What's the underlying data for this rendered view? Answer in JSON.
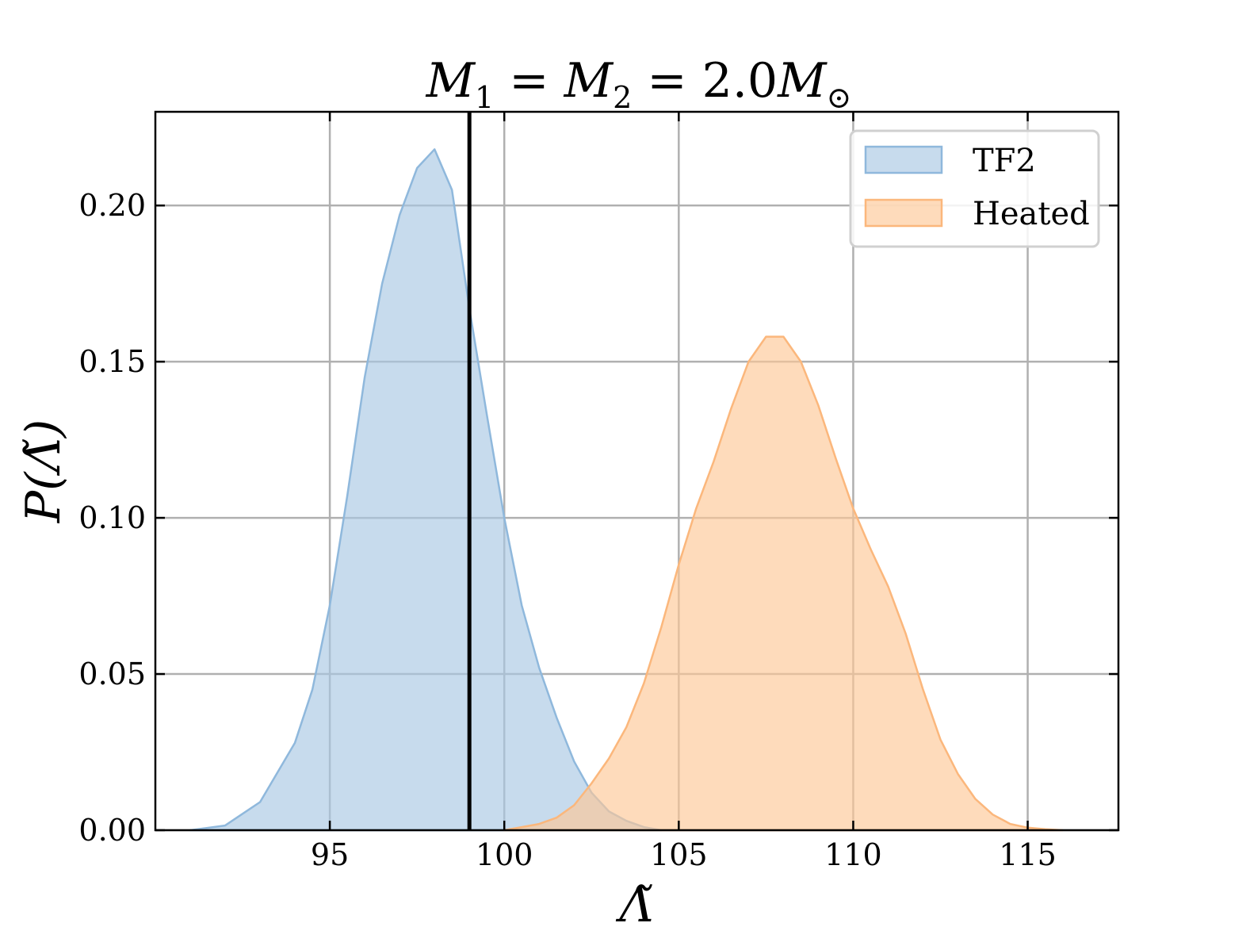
{
  "chart_data": {
    "type": "area",
    "title": {
      "m1": "M",
      "sub1": "1",
      "eq1": " = ",
      "m2": "M",
      "sub2": "2",
      "eq2": " = 2.0",
      "m3": "M",
      "sub3": "⊙"
    },
    "xlabel": "Λ̃",
    "ylabel": "P(Λ̃)",
    "xlim": [
      90.0,
      117.6
    ],
    "ylim": [
      0.0,
      0.23
    ],
    "xticks": [
      95,
      100,
      105,
      110,
      115
    ],
    "xtick_labels": [
      "95",
      "100",
      "105",
      "110",
      "115"
    ],
    "yticks": [
      0.0,
      0.05,
      0.1,
      0.15,
      0.2
    ],
    "ytick_labels": [
      "0.00",
      "0.05",
      "0.10",
      "0.15",
      "0.20"
    ],
    "grid": true,
    "legend_position": "top-right",
    "vline_x": 99.0,
    "series": [
      {
        "name": "TF2",
        "color": "#a9c8e3",
        "edge_color": "#8fb8dc",
        "points": [
          [
            91.0,
            0.0
          ],
          [
            92.0,
            0.0015
          ],
          [
            93.0,
            0.009
          ],
          [
            94.0,
            0.028
          ],
          [
            94.5,
            0.045
          ],
          [
            95.0,
            0.072
          ],
          [
            95.5,
            0.107
          ],
          [
            96.0,
            0.145
          ],
          [
            96.5,
            0.175
          ],
          [
            97.0,
            0.197
          ],
          [
            97.5,
            0.212
          ],
          [
            98.0,
            0.218
          ],
          [
            98.5,
            0.205
          ],
          [
            99.0,
            0.167
          ],
          [
            99.5,
            0.133
          ],
          [
            100.0,
            0.1
          ],
          [
            100.5,
            0.072
          ],
          [
            101.0,
            0.052
          ],
          [
            101.5,
            0.036
          ],
          [
            102.0,
            0.022
          ],
          [
            102.5,
            0.012
          ],
          [
            103.0,
            0.006
          ],
          [
            103.5,
            0.003
          ],
          [
            104.0,
            0.001
          ],
          [
            104.5,
            0.0
          ]
        ]
      },
      {
        "name": "Heated",
        "color": "#fdc796",
        "edge_color": "#fbb77c",
        "points": [
          [
            100.0,
            0.0
          ],
          [
            100.5,
            0.001
          ],
          [
            101.0,
            0.002
          ],
          [
            101.5,
            0.004
          ],
          [
            102.0,
            0.008
          ],
          [
            102.5,
            0.015
          ],
          [
            103.0,
            0.023
          ],
          [
            103.5,
            0.033
          ],
          [
            104.0,
            0.047
          ],
          [
            104.5,
            0.065
          ],
          [
            105.0,
            0.085
          ],
          [
            105.5,
            0.103
          ],
          [
            106.0,
            0.118
          ],
          [
            106.5,
            0.135
          ],
          [
            107.0,
            0.15
          ],
          [
            107.5,
            0.158
          ],
          [
            108.0,
            0.158
          ],
          [
            108.5,
            0.15
          ],
          [
            109.0,
            0.136
          ],
          [
            109.5,
            0.119
          ],
          [
            110.0,
            0.103
          ],
          [
            110.5,
            0.09
          ],
          [
            111.0,
            0.078
          ],
          [
            111.5,
            0.063
          ],
          [
            112.0,
            0.045
          ],
          [
            112.5,
            0.029
          ],
          [
            113.0,
            0.018
          ],
          [
            113.5,
            0.01
          ],
          [
            114.0,
            0.005
          ],
          [
            114.5,
            0.002
          ],
          [
            115.0,
            0.0008
          ],
          [
            115.5,
            0.0003
          ],
          [
            116.0,
            0.0
          ]
        ]
      }
    ]
  }
}
